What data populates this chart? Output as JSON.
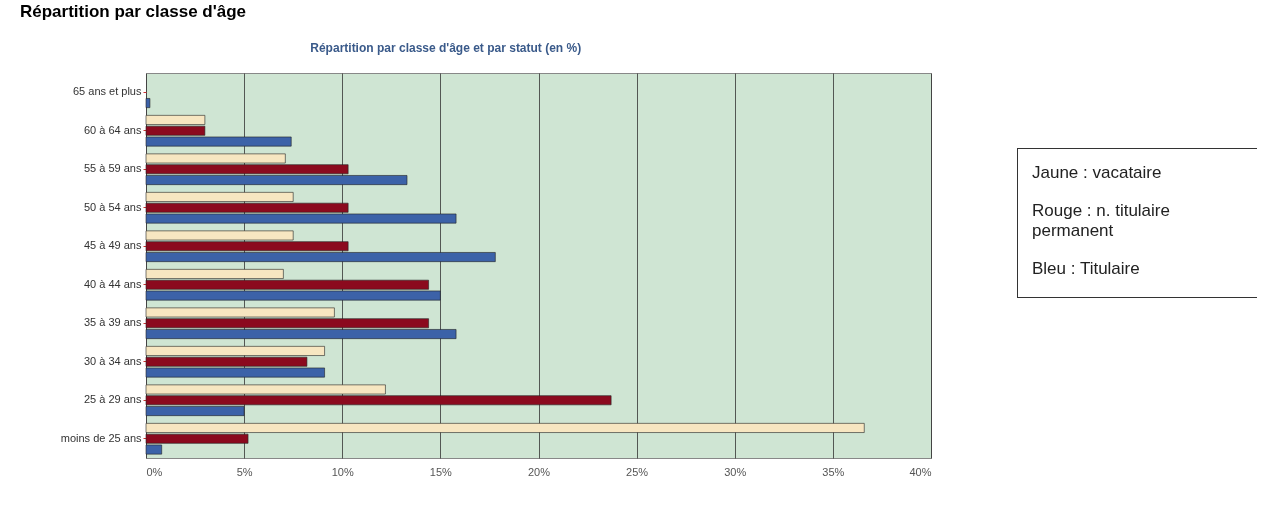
{
  "chart_data": {
    "type": "bar",
    "orientation": "horizontal",
    "title": "Répartition par classe d'âge",
    "subtitle": "Répartition par classe d'âge et par statut (en %)",
    "categories": [
      "65 ans et plus",
      "60 à 64 ans",
      "55 à 59 ans",
      "50 à 54 ans",
      "45 à 49 ans",
      "40 à 44 ans",
      "35 à 39 ans",
      "30 à 34 ans",
      "25 à 29 ans",
      "moins de 25 ans"
    ],
    "series": [
      {
        "color": "#f7e6c1",
        "values": [
          0,
          3.0,
          7.1,
          7.5,
          7.5,
          7.0,
          9.6,
          9.1,
          12.2,
          36.6
        ]
      },
      {
        "color": "#8b0a1e",
        "values": [
          0,
          3.0,
          10.3,
          10.3,
          10.3,
          14.4,
          14.4,
          8.2,
          23.7,
          5.2
        ]
      },
      {
        "color": "#3c62a8",
        "values": [
          0.2,
          7.4,
          13.3,
          15.8,
          17.8,
          15.0,
          15.8,
          9.1,
          5.0,
          0.8
        ]
      }
    ],
    "xlim": [
      0,
      40
    ],
    "xticks": [
      {
        "value": 0,
        "label": "0%"
      },
      {
        "value": 5,
        "label": "5%"
      },
      {
        "value": 10,
        "label": "10%"
      },
      {
        "value": 15,
        "label": "15%"
      },
      {
        "value": 20,
        "label": "20%"
      },
      {
        "value": 25,
        "label": "25%"
      },
      {
        "value": 30,
        "label": "30%"
      },
      {
        "value": 35,
        "label": "35%"
      },
      {
        "value": 40,
        "label": "40%"
      }
    ],
    "grid": "x",
    "annotations": [
      "Jaune : vacataire",
      "Rouge : n. titulaire permanent",
      "Bleu : Titulaire"
    ]
  }
}
